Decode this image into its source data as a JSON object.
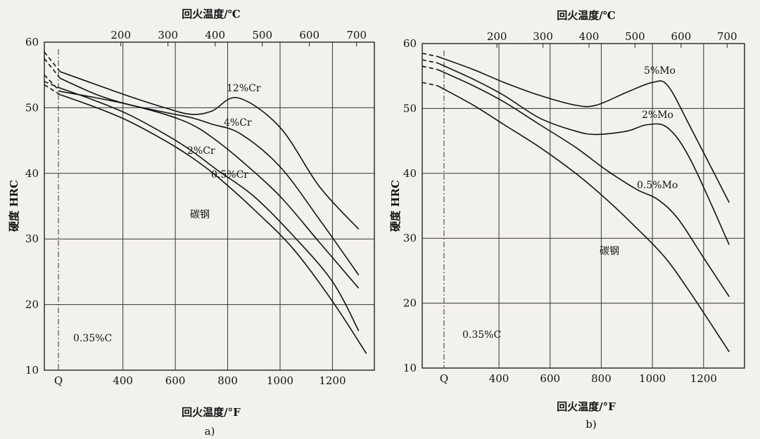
{
  "chart_data": [
    {
      "type": "line",
      "panel_label": "a)",
      "xlabel": "回火温度/°F",
      "x2label": "回火温度/℃",
      "ylabel": "硬度 HRC",
      "ylim": [
        10,
        60
      ],
      "xlim": [
        100,
        1360
      ],
      "x_ticks": [
        400,
        600,
        800,
        1000,
        1200
      ],
      "x_start_label": "Q",
      "x2_ticks": [
        200,
        300,
        400,
        500,
        600,
        700
      ],
      "y_ticks": [
        10,
        20,
        30,
        40,
        50,
        60
      ],
      "grid": true,
      "annotation": "0.35%C",
      "series": [
        {
          "name": "12%Cr",
          "x": [
            100,
            160,
            300,
            420,
            560,
            660,
            740,
            840,
            1000,
            1150,
            1300
          ],
          "y": [
            58.5,
            55.5,
            53.5,
            51.8,
            50,
            49,
            49.5,
            51.5,
            47,
            38,
            31.5
          ]
        },
        {
          "name": "4%Cr",
          "x": [
            100,
            160,
            300,
            420,
            560,
            660,
            740,
            850,
            1000,
            1150,
            1300
          ],
          "y": [
            57.5,
            54.5,
            52,
            50.5,
            49.3,
            48.5,
            47.5,
            46,
            41,
            33,
            24.5
          ]
        },
        {
          "name": "2%Cr",
          "x": [
            100,
            160,
            300,
            420,
            560,
            660,
            740,
            850,
            1000,
            1150,
            1300
          ],
          "y": [
            55,
            52.5,
            51.5,
            50.5,
            49,
            47.5,
            45.5,
            42,
            36.5,
            29.5,
            22.5
          ]
        },
        {
          "name": "0.5%Cr",
          "x": [
            100,
            160,
            300,
            420,
            560,
            660,
            760,
            900,
            1050,
            1200,
            1300
          ],
          "y": [
            54,
            53,
            51,
            49,
            46,
            43.5,
            40.5,
            36.5,
            30.5,
            23.5,
            16
          ]
        },
        {
          "name": "碳钢",
          "x": [
            100,
            160,
            300,
            420,
            560,
            660,
            760,
            900,
            1050,
            1200,
            1330
          ],
          "y": [
            53.5,
            52,
            50,
            48,
            45,
            42.5,
            39.5,
            34.5,
            28.5,
            20.5,
            12.5
          ]
        }
      ]
    },
    {
      "type": "line",
      "panel_label": "b)",
      "xlabel": "回火温度/°F",
      "x2label": "回火温度/℃",
      "ylabel": "硬度 HRC",
      "ylim": [
        10,
        60
      ],
      "xlim": [
        100,
        1360
      ],
      "x_ticks": [
        400,
        600,
        800,
        1000,
        1200
      ],
      "x_start_label": "Q",
      "x2_ticks": [
        200,
        300,
        400,
        500,
        600,
        700
      ],
      "y_ticks": [
        10,
        20,
        30,
        40,
        50,
        60
      ],
      "grid": true,
      "annotation": "0.35%C",
      "series": [
        {
          "name": "5%Mo",
          "x": [
            100,
            160,
            300,
            420,
            560,
            700,
            780,
            900,
            1000,
            1060,
            1150,
            1300
          ],
          "y": [
            58.5,
            58,
            56,
            54,
            52,
            50.5,
            50.5,
            52.5,
            54,
            53.5,
            47,
            35.5
          ]
        },
        {
          "name": "2%Mo",
          "x": [
            100,
            160,
            300,
            420,
            560,
            700,
            780,
            900,
            980,
            1060,
            1150,
            1300
          ],
          "y": [
            57.5,
            57,
            54.5,
            52,
            48.5,
            46.5,
            46,
            46.5,
            47.5,
            47,
            42,
            29
          ]
        },
        {
          "name": "0.5%Mo",
          "x": [
            100,
            160,
            300,
            420,
            560,
            700,
            820,
            940,
            1020,
            1100,
            1200,
            1300
          ],
          "y": [
            56.5,
            56,
            53.5,
            51,
            47.5,
            44,
            40.5,
            37.5,
            36,
            33,
            27,
            21
          ]
        },
        {
          "name": "碳钢",
          "x": [
            100,
            160,
            300,
            420,
            560,
            700,
            820,
            940,
            1050,
            1150,
            1300
          ],
          "y": [
            54,
            53.5,
            50.5,
            47.5,
            44,
            40,
            36,
            31.5,
            27,
            21.5,
            12.5
          ]
        }
      ]
    }
  ]
}
